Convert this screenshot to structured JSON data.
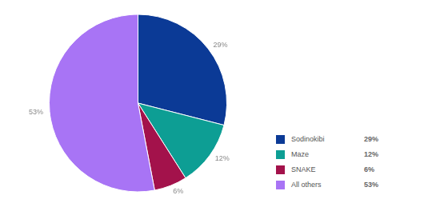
{
  "chart_data": {
    "type": "pie",
    "categories": [
      "Sodinokibi",
      "Maze",
      "SNAKE",
      "All others"
    ],
    "values": [
      29,
      12,
      6,
      53
    ],
    "value_labels": [
      "29%",
      "12%",
      "6%",
      "53%"
    ],
    "colors": [
      "#0b3a96",
      "#0d9e94",
      "#a3124b",
      "#a874f5"
    ],
    "data_labels": true,
    "legend": "right"
  }
}
